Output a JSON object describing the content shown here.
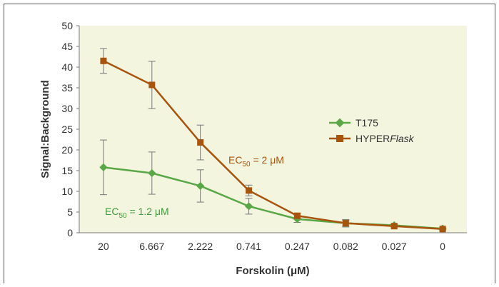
{
  "chart_data": {
    "type": "line",
    "xlabel": "Forskolin (μM)",
    "ylabel": "Signal:Background",
    "categories": [
      "20",
      "6.667",
      "2.222",
      "0.741",
      "0.247",
      "0.082",
      "0.027",
      "0"
    ],
    "ylim": [
      0,
      50
    ],
    "yticks": [
      0,
      5,
      10,
      15,
      20,
      25,
      30,
      35,
      40,
      45,
      50
    ],
    "grid": false,
    "legend_position": "right",
    "series": [
      {
        "name": "T175",
        "color": "#5aa747",
        "marker": "diamond",
        "values": [
          15.8,
          14.4,
          11.3,
          6.4,
          3.3,
          2.3,
          1.8,
          1.0
        ],
        "errors": [
          6.6,
          5.1,
          3.9,
          1.9,
          0.8,
          0.7,
          0.3,
          0.2
        ]
      },
      {
        "name": "HYPERFlask",
        "name_prefix": "HYPER",
        "name_italic": "Flask",
        "color": "#a7540e",
        "marker": "square",
        "values": [
          41.5,
          35.7,
          21.8,
          10.2,
          4.1,
          2.3,
          1.6,
          0.9
        ],
        "errors": [
          3.0,
          5.7,
          4.2,
          1.3,
          0.6,
          0.9,
          0.4,
          0.2
        ]
      }
    ],
    "annotations": [
      {
        "series": "HYPERFlask",
        "pre": "EC",
        "sub": "50",
        "post": " = 2 μM",
        "color": "#a7540e"
      },
      {
        "series": "T175",
        "pre": "EC",
        "sub": "50",
        "post": " = 1.2 μM",
        "color": "#3f9a3c"
      }
    ]
  },
  "colors": {
    "plot_background": "#f4f5df",
    "axis": "#777777",
    "error_bar": "#777777"
  }
}
